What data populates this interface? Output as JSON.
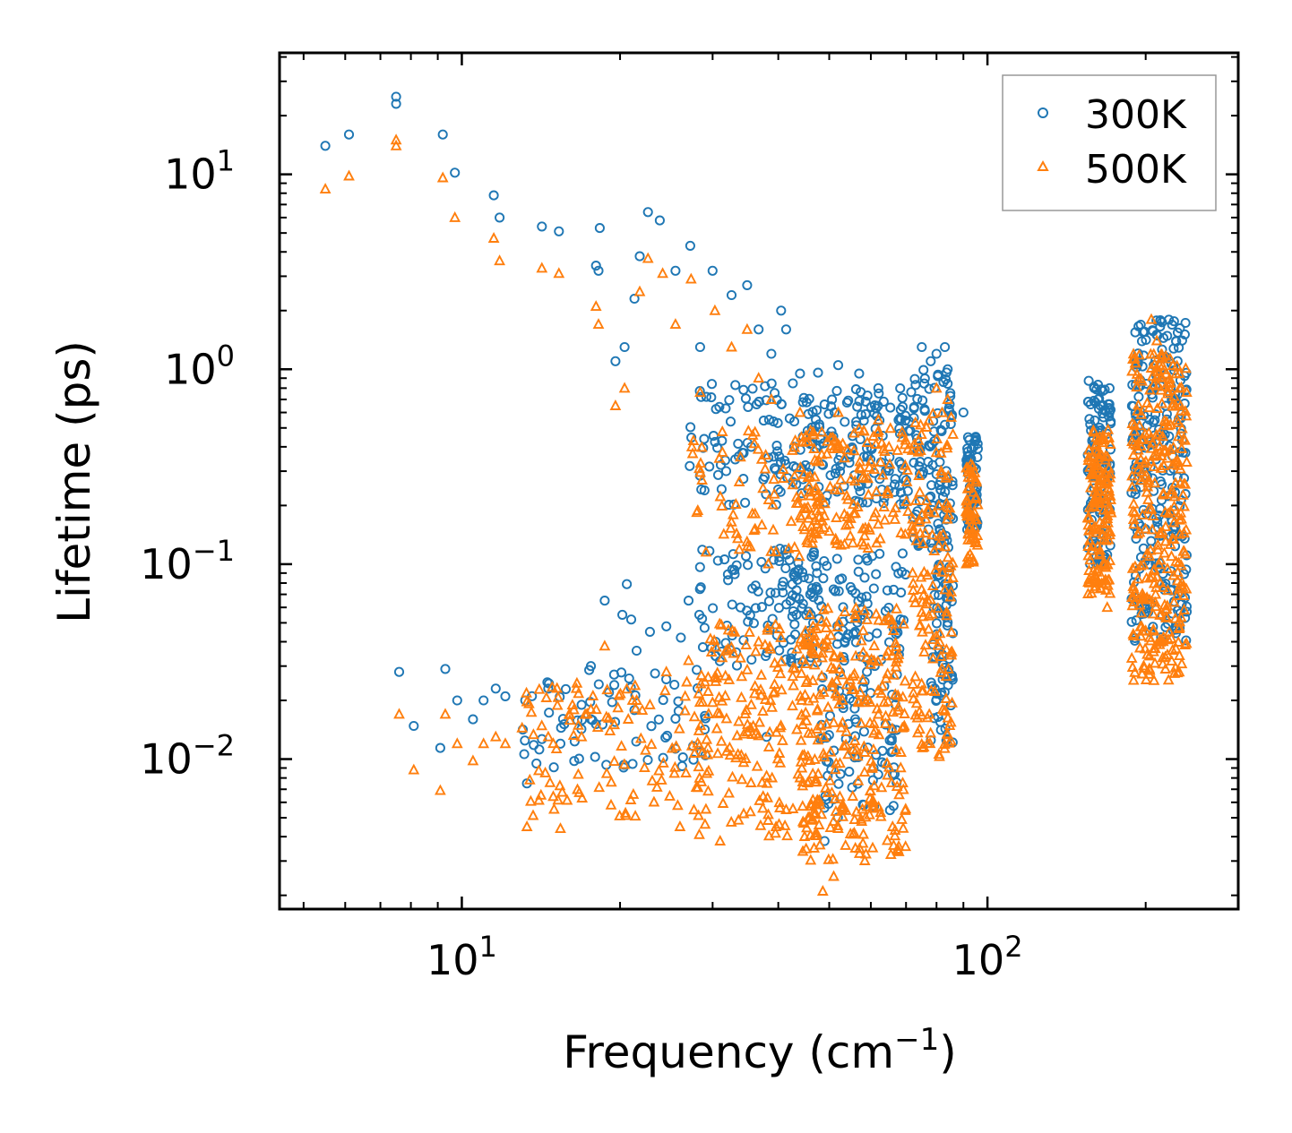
{
  "chart_data": {
    "type": "scatter",
    "title": "",
    "xlabel": "Frequency (cm",
    "xlabel_sup": "−1",
    "xlabel_close": ")",
    "ylabel": "Lifetime (ps)",
    "xscale": "log",
    "yscale": "log",
    "xlim": [
      4.5,
      300
    ],
    "ylim": [
      0.0017,
      42
    ],
    "x_ticks": [
      {
        "base": "10",
        "exp": "1",
        "value": 10
      },
      {
        "base": "10",
        "exp": "2",
        "value": 100
      }
    ],
    "y_ticks": [
      {
        "base": "10",
        "exp": "1",
        "value": 10
      },
      {
        "base": "10",
        "exp": "0",
        "value": 1
      },
      {
        "base": "10",
        "exp": "−1",
        "value": 0.1
      },
      {
        "base": "10",
        "exp": "−2",
        "value": 0.01
      }
    ],
    "legend": {
      "position": "top-right"
    },
    "series": [
      {
        "name": "300K",
        "marker": "circle",
        "color": "#1f77b4",
        "points": [
          [
            5.5,
            14
          ],
          [
            6.1,
            16
          ],
          [
            7.5,
            25
          ],
          [
            7.5,
            23
          ],
          [
            9.2,
            16
          ],
          [
            9.7,
            10.2
          ],
          [
            11.5,
            7.8
          ],
          [
            11.8,
            6
          ],
          [
            14.2,
            5.4
          ],
          [
            15.3,
            5.1
          ],
          [
            18.3,
            5.3
          ],
          [
            18,
            3.4
          ],
          [
            18.2,
            3.2
          ],
          [
            19.6,
            1.1
          ],
          [
            20.4,
            1.3
          ],
          [
            21.3,
            2.3
          ],
          [
            21.8,
            3.8
          ],
          [
            22.6,
            6.4
          ],
          [
            23.8,
            5.8
          ],
          [
            25.5,
            3.2
          ],
          [
            27.2,
            4.3
          ],
          [
            28.4,
            1.3
          ],
          [
            29.9,
            0.84
          ],
          [
            30,
            3.2
          ],
          [
            32.6,
            2.4
          ],
          [
            34.9,
            2.7
          ],
          [
            36.7,
            1.6
          ],
          [
            38.8,
            1.2
          ],
          [
            40.5,
            2.0
          ],
          [
            41.4,
            1.6
          ],
          [
            44,
            0.95
          ],
          [
            47.6,
            0.96
          ],
          [
            52,
            1.05
          ],
          [
            57,
            0.95
          ],
          [
            62,
            0.8
          ],
          [
            75,
            1.3
          ],
          [
            78,
            1.1
          ],
          [
            80,
            1.2
          ],
          [
            83,
            1.3
          ],
          [
            84,
            1.0
          ],
          [
            90,
            0.6
          ],
          [
            95,
            0.45
          ],
          [
            7.6,
            0.028
          ],
          [
            8.1,
            0.0148
          ],
          [
            9.1,
            0.0114
          ],
          [
            9.3,
            0.029
          ],
          [
            9.8,
            0.02
          ],
          [
            10.5,
            0.016
          ],
          [
            11,
            0.02
          ],
          [
            11.6,
            0.023
          ],
          [
            12.1,
            0.021
          ],
          [
            13.2,
            0.02
          ],
          [
            13.3,
            0.0075
          ],
          [
            14.6,
            0.023
          ],
          [
            15.4,
            0.012
          ],
          [
            16.9,
            0.019
          ],
          [
            17.6,
            0.03
          ],
          [
            18.7,
            0.065
          ],
          [
            19.5,
            0.024
          ],
          [
            20.6,
            0.079
          ],
          [
            20.2,
            0.055
          ],
          [
            21,
            0.052
          ],
          [
            21.5,
            0.036
          ],
          [
            22.8,
            0.045
          ],
          [
            24.5,
            0.048
          ],
          [
            26.1,
            0.042
          ],
          [
            27,
            0.065
          ],
          [
            28.3,
            0.055
          ],
          [
            30.4,
            0.04
          ],
          [
            33.9,
            0.06
          ],
          [
            35.7,
            0.075
          ],
          [
            37.8,
            0.095
          ],
          [
            40.3,
            0.12
          ],
          [
            42,
            0.105
          ],
          [
            46,
            0.07
          ],
          [
            38,
            0.013
          ],
          [
            49,
            0.0038
          ],
          [
            56,
            0.045
          ]
        ]
      },
      {
        "name": "500K",
        "marker": "triangle",
        "color": "#ff7f0e",
        "points": [
          [
            5.5,
            8.4
          ],
          [
            6.1,
            9.8
          ],
          [
            7.5,
            15
          ],
          [
            7.5,
            14
          ],
          [
            9.2,
            9.6
          ],
          [
            9.7,
            6
          ],
          [
            11.5,
            4.7
          ],
          [
            11.8,
            3.6
          ],
          [
            14.2,
            3.3
          ],
          [
            15.3,
            3.1
          ],
          [
            18,
            2.1
          ],
          [
            18.2,
            1.7
          ],
          [
            19.6,
            0.65
          ],
          [
            20.4,
            0.8
          ],
          [
            21.8,
            2.5
          ],
          [
            22.6,
            3.7
          ],
          [
            24.1,
            3.1
          ],
          [
            25.5,
            1.7
          ],
          [
            27.3,
            2.9
          ],
          [
            28.4,
            0.76
          ],
          [
            30.3,
            2.0
          ],
          [
            32.6,
            1.3
          ],
          [
            34.9,
            1.6
          ],
          [
            36.7,
            0.9
          ],
          [
            38.8,
            0.7
          ],
          [
            44,
            0.6
          ],
          [
            52,
            0.6
          ],
          [
            62,
            0.55
          ],
          [
            80,
            0.8
          ],
          [
            84,
            0.7
          ],
          [
            205,
            1.8
          ],
          [
            210,
            1.4
          ],
          [
            169,
            0.06
          ],
          [
            7.6,
            0.017
          ],
          [
            8.1,
            0.0088
          ],
          [
            9.1,
            0.0069
          ],
          [
            9.3,
            0.017
          ],
          [
            9.8,
            0.012
          ],
          [
            10.5,
            0.0098
          ],
          [
            11,
            0.012
          ],
          [
            11.6,
            0.013
          ],
          [
            12.1,
            0.012
          ],
          [
            13.3,
            0.0045
          ],
          [
            14.6,
            0.013
          ],
          [
            15.4,
            0.0044
          ],
          [
            16.9,
            0.013
          ],
          [
            17.6,
            0.018
          ],
          [
            18.7,
            0.038
          ],
          [
            19.5,
            0.015
          ],
          [
            21.5,
            0.02
          ],
          [
            22.8,
            0.019
          ],
          [
            24.5,
            0.028
          ],
          [
            26,
            0.0045
          ],
          [
            27,
            0.032
          ],
          [
            28.3,
            0.0041
          ],
          [
            30.4,
            0.025
          ],
          [
            31,
            0.0038
          ],
          [
            33.9,
            0.033
          ],
          [
            36.7,
            0.04
          ],
          [
            38,
            0.0082
          ],
          [
            41.4,
            0.0055
          ],
          [
            48.6,
            0.0021
          ],
          [
            51,
            0.0025
          ],
          [
            66,
            0.0045
          ]
        ]
      }
    ],
    "dense_clusters": [
      {
        "series": "300K",
        "x_range": [
          27,
          48
        ],
        "y_range": [
          0.2,
          0.85
        ],
        "count": 90
      },
      {
        "series": "300K",
        "x_range": [
          28,
          48
        ],
        "y_range": [
          0.03,
          0.12
        ],
        "count": 90
      },
      {
        "series": "300K",
        "x_range": [
          13,
          30
        ],
        "y_range": [
          0.009,
          0.03
        ],
        "count": 70
      },
      {
        "series": "300K",
        "x_range": [
          44,
          72
        ],
        "y_range": [
          0.2,
          0.8
        ],
        "count": 140
      },
      {
        "series": "300K",
        "x_range": [
          42,
          70
        ],
        "y_range": [
          0.03,
          0.12
        ],
        "count": 110
      },
      {
        "series": "300K",
        "x_range": [
          48,
          68
        ],
        "y_range": [
          0.005,
          0.03
        ],
        "count": 80
      },
      {
        "series": "300K",
        "x_range": [
          72,
          86
        ],
        "y_range": [
          0.12,
          1.0
        ],
        "count": 110
      },
      {
        "series": "300K",
        "x_range": [
          78,
          86
        ],
        "y_range": [
          0.012,
          0.12
        ],
        "count": 70
      },
      {
        "series": "300K",
        "x_range": [
          91,
          96
        ],
        "y_range": [
          0.15,
          0.45
        ],
        "count": 60
      },
      {
        "series": "300K",
        "x_range": [
          155,
          172
        ],
        "y_range": [
          0.1,
          0.9
        ],
        "count": 120
      },
      {
        "series": "300K",
        "x_range": [
          188,
          240
        ],
        "y_range": [
          0.04,
          1.8
        ],
        "count": 260
      },
      {
        "series": "500K",
        "x_range": [
          27,
          48
        ],
        "y_range": [
          0.1,
          0.5
        ],
        "count": 90
      },
      {
        "series": "500K",
        "x_range": [
          28,
          48
        ],
        "y_range": [
          0.004,
          0.05
        ],
        "count": 180
      },
      {
        "series": "500K",
        "x_range": [
          13,
          30
        ],
        "y_range": [
          0.005,
          0.025
        ],
        "count": 110
      },
      {
        "series": "500K",
        "x_range": [
          44,
          72
        ],
        "y_range": [
          0.12,
          0.5
        ],
        "count": 140
      },
      {
        "series": "500K",
        "x_range": [
          44,
          70
        ],
        "y_range": [
          0.003,
          0.06
        ],
        "count": 280
      },
      {
        "series": "500K",
        "x_range": [
          72,
          86
        ],
        "y_range": [
          0.01,
          0.6
        ],
        "count": 150
      },
      {
        "series": "500K",
        "x_range": [
          91,
          96
        ],
        "y_range": [
          0.1,
          0.35
        ],
        "count": 60
      },
      {
        "series": "500K",
        "x_range": [
          155,
          172
        ],
        "y_range": [
          0.07,
          0.5
        ],
        "count": 150
      },
      {
        "series": "500K",
        "x_range": [
          188,
          240
        ],
        "y_range": [
          0.025,
          1.2
        ],
        "count": 320
      }
    ]
  }
}
